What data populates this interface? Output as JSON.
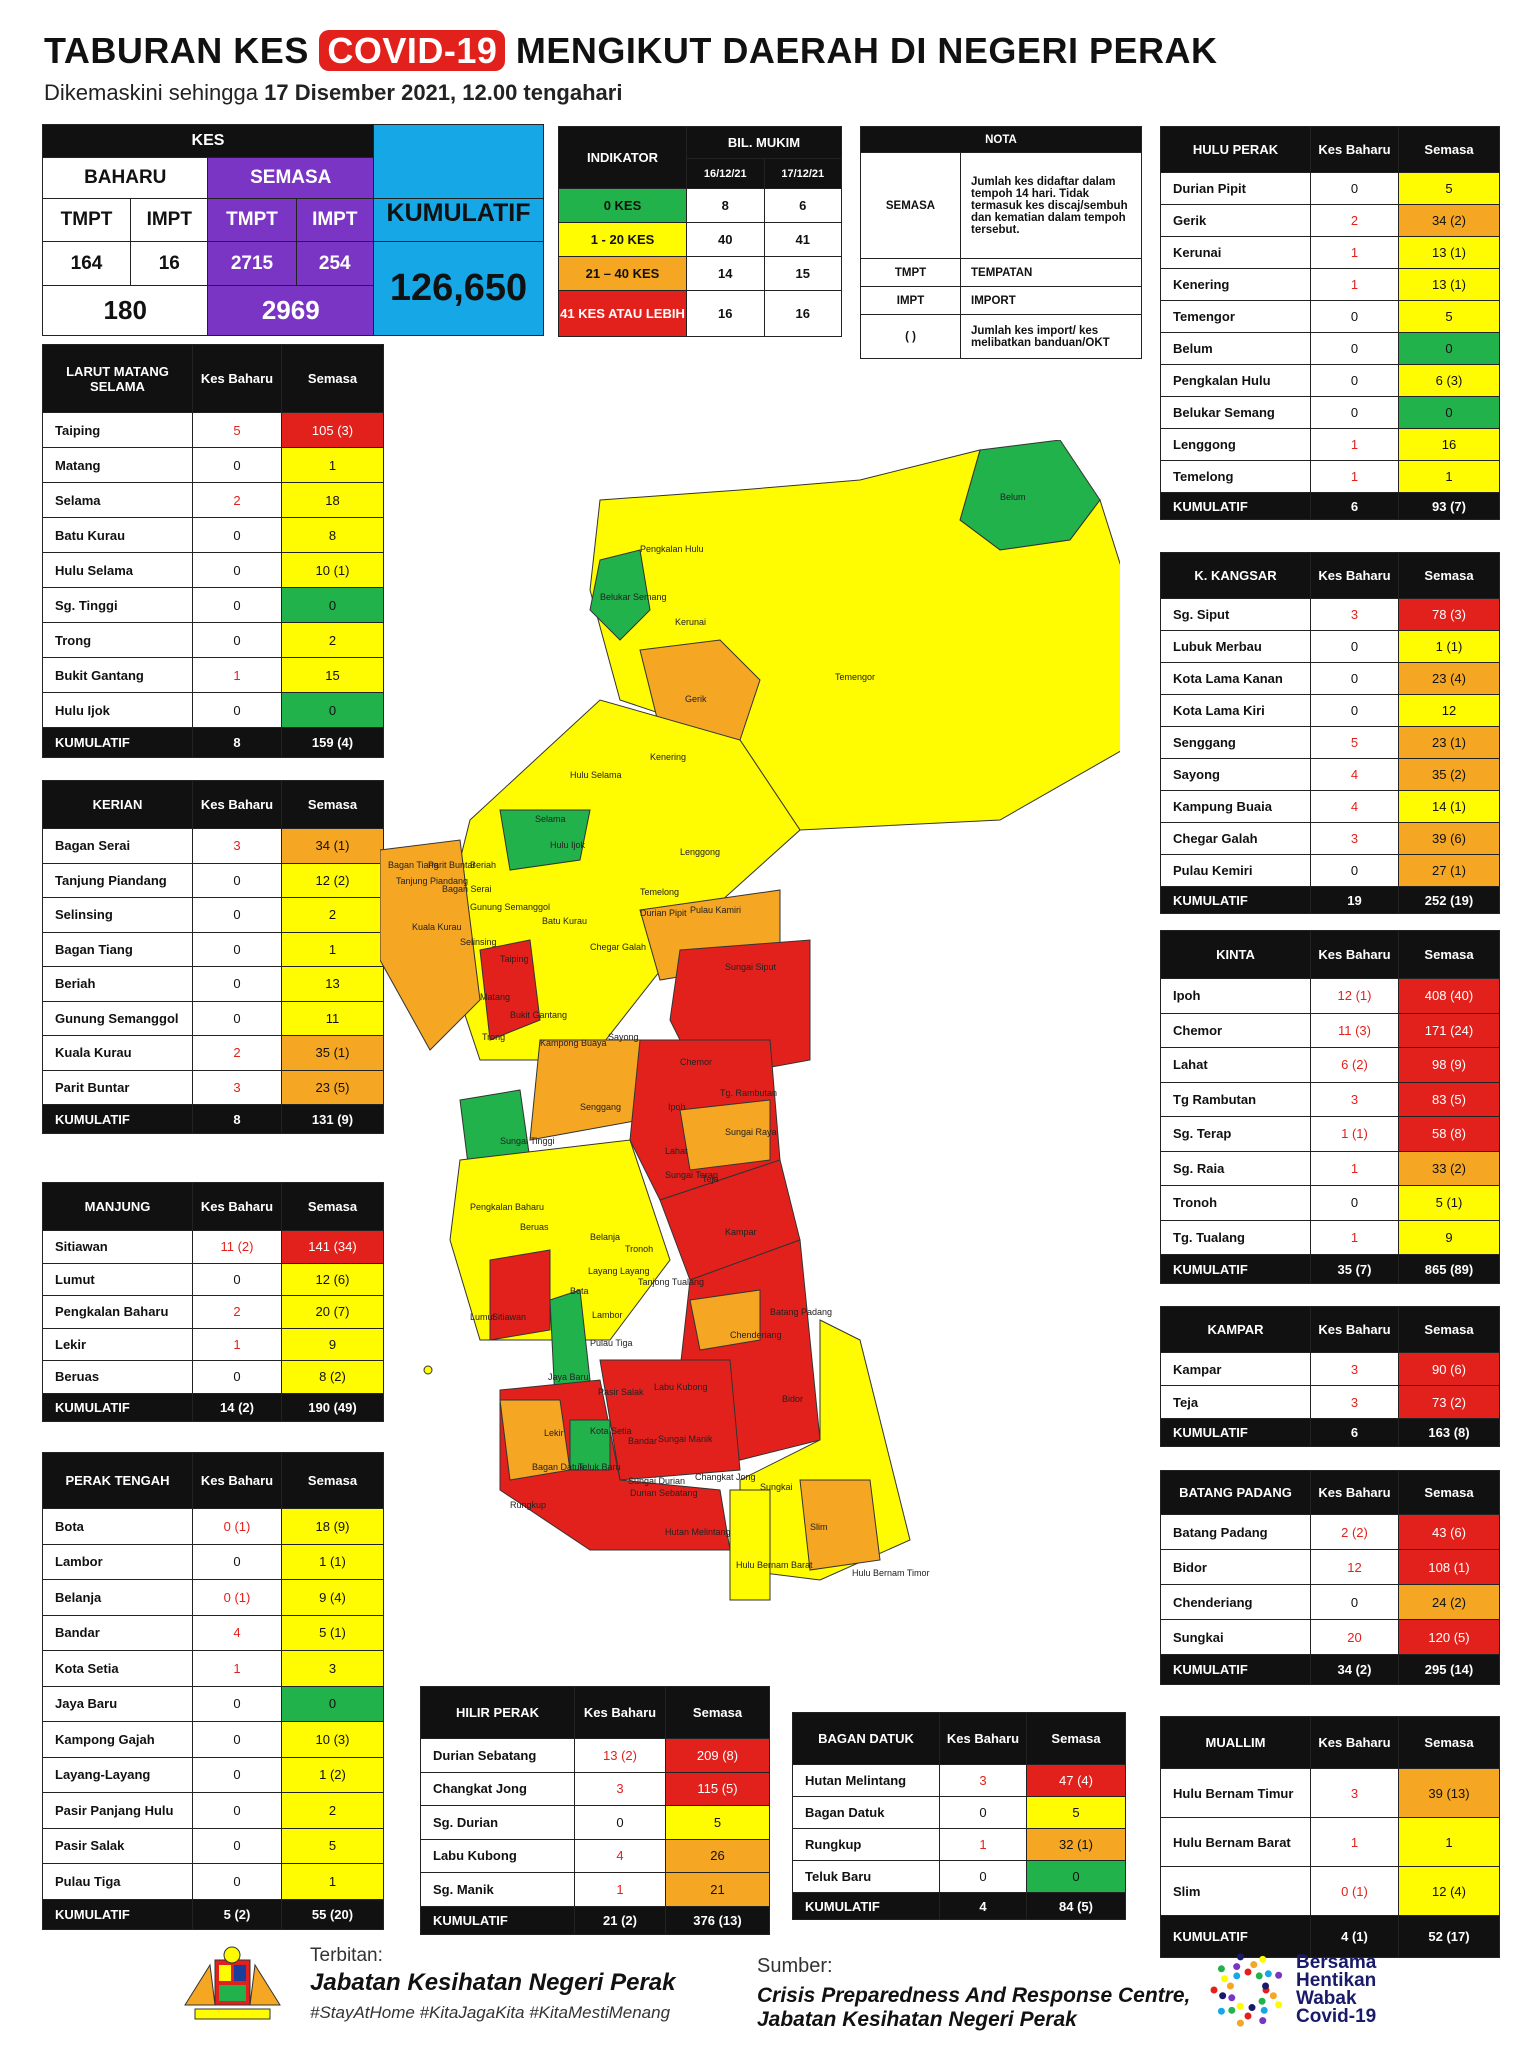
{
  "header": {
    "title_pre": "TABURAN KES",
    "title_highlight": "COVID-19",
    "title_post": "MENGIKUT DAERAH DI NEGERI PERAK",
    "subtitle_pre": "Dikemaskini sehingga",
    "subtitle_bold": "17 Disember 2021, 12.00 tengahari"
  },
  "kes": {
    "title": "KES",
    "baharu": "BAHARU",
    "semasa": "SEMASA",
    "kumulatif_label": "KUMULATIF",
    "tmpt": "TMPT",
    "impt": "IMPT",
    "baharu_tmpt": "164",
    "baharu_impt": "16",
    "semasa_tmpt": "2715",
    "semasa_impt": "254",
    "baharu_total": "180",
    "semasa_total": "2969",
    "kumulatif": "126,650"
  },
  "indikator": {
    "title": "INDIKATOR",
    "bil": "BIL. MUKIM",
    "d1": "16/12/21",
    "d2": "17/12/21",
    "rows": [
      {
        "label": "0 KES",
        "v1": "8",
        "v2": "6"
      },
      {
        "label": "1 - 20 KES",
        "v1": "40",
        "v2": "41"
      },
      {
        "label": "21 – 40 KES",
        "v1": "14",
        "v2": "15"
      },
      {
        "label": "41 KES ATAU LEBIH",
        "v1": "16",
        "v2": "16"
      }
    ]
  },
  "nota": {
    "title": "NOTA",
    "rows": [
      {
        "k": "SEMASA",
        "v": "Jumlah kes didaftar dalam tempoh 14 hari. Tidak termasuk kes discaj/sembuh dan kematian dalam tempoh tersebut."
      },
      {
        "k": "TMPT",
        "v": "TEMPATAN"
      },
      {
        "k": "IMPT",
        "v": "IMPORT"
      },
      {
        "k": "( )",
        "v": "Jumlah kes import/ kes melibatkan banduan/OKT"
      }
    ]
  },
  "col_kes": "Kes Baharu",
  "col_semasa": "Semasa",
  "kumulatif": "KUMULATIF",
  "districts": {
    "larut": {
      "title": "LARUT MATANG SELAMA",
      "rows": [
        {
          "n": "Taiping",
          "b": "5",
          "s": "105 (3)",
          "c": "red",
          "r": true
        },
        {
          "n": "Matang",
          "b": "0",
          "s": "1",
          "c": "yellow"
        },
        {
          "n": "Selama",
          "b": "2",
          "s": "18",
          "c": "yellow",
          "r": true
        },
        {
          "n": "Batu Kurau",
          "b": "0",
          "s": "8",
          "c": "yellow"
        },
        {
          "n": "Hulu Selama",
          "b": "0",
          "s": "10 (1)",
          "c": "yellow"
        },
        {
          "n": "Sg. Tinggi",
          "b": "0",
          "s": "0",
          "c": "green"
        },
        {
          "n": "Trong",
          "b": "0",
          "s": "2",
          "c": "yellow"
        },
        {
          "n": "Bukit Gantang",
          "b": "1",
          "s": "15",
          "c": "yellow",
          "r": true
        },
        {
          "n": "Hulu Ijok",
          "b": "0",
          "s": "0",
          "c": "green"
        }
      ],
      "total_b": "8",
      "total_s": "159 (4)"
    },
    "kerian": {
      "title": "KERIAN",
      "rows": [
        {
          "n": "Bagan Serai",
          "b": "3",
          "s": "34 (1)",
          "c": "orange",
          "r": true
        },
        {
          "n": "Tanjung Piandang",
          "b": "0",
          "s": "12 (2)",
          "c": "yellow"
        },
        {
          "n": "Selinsing",
          "b": "0",
          "s": "2",
          "c": "yellow"
        },
        {
          "n": "Bagan Tiang",
          "b": "0",
          "s": "1",
          "c": "yellow"
        },
        {
          "n": "Beriah",
          "b": "0",
          "s": "13",
          "c": "yellow"
        },
        {
          "n": "Gunung Semanggol",
          "b": "0",
          "s": "11",
          "c": "yellow"
        },
        {
          "n": "Kuala Kurau",
          "b": "2",
          "s": "35 (1)",
          "c": "orange",
          "r": true
        },
        {
          "n": "Parit Buntar",
          "b": "3",
          "s": "23 (5)",
          "c": "orange",
          "r": true
        }
      ],
      "total_b": "8",
      "total_s": "131 (9)"
    },
    "manjung": {
      "title": "MANJUNG",
      "rows": [
        {
          "n": "Sitiawan",
          "b": "11 (2)",
          "s": "141 (34)",
          "c": "red",
          "r": true
        },
        {
          "n": "Lumut",
          "b": "0",
          "s": "12 (6)",
          "c": "yellow"
        },
        {
          "n": "Pengkalan Baharu",
          "b": "2",
          "s": "20 (7)",
          "c": "yellow",
          "r": true
        },
        {
          "n": "Lekir",
          "b": "1",
          "s": "9",
          "c": "yellow",
          "r": true
        },
        {
          "n": "Beruas",
          "b": "0",
          "s": "8 (2)",
          "c": "yellow"
        }
      ],
      "total_b": "14 (2)",
      "total_s": "190 (49)"
    },
    "perak_tengah": {
      "title": "PERAK TENGAH",
      "rows": [
        {
          "n": "Bota",
          "b": "0 (1)",
          "s": "18 (9)",
          "c": "yellow",
          "r": true
        },
        {
          "n": "Lambor",
          "b": "0",
          "s": "1 (1)",
          "c": "yellow"
        },
        {
          "n": "Belanja",
          "b": "0 (1)",
          "s": "9 (4)",
          "c": "yellow",
          "r": true
        },
        {
          "n": "Bandar",
          "b": "4",
          "s": "5 (1)",
          "c": "yellow",
          "r": true
        },
        {
          "n": "Kota Setia",
          "b": "1",
          "s": "3",
          "c": "yellow",
          "r": true
        },
        {
          "n": "Jaya Baru",
          "b": "0",
          "s": "0",
          "c": "green"
        },
        {
          "n": "Kampong Gajah",
          "b": "0",
          "s": "10 (3)",
          "c": "yellow"
        },
        {
          "n": "Layang-Layang",
          "b": "0",
          "s": "1 (2)",
          "c": "yellow"
        },
        {
          "n": "Pasir Panjang Hulu",
          "b": "0",
          "s": "2",
          "c": "yellow"
        },
        {
          "n": "Pasir Salak",
          "b": "0",
          "s": "5",
          "c": "yellow"
        },
        {
          "n": "Pulau Tiga",
          "b": "0",
          "s": "1",
          "c": "yellow"
        }
      ],
      "total_b": "5 (2)",
      "total_s": "55 (20)"
    },
    "hilir_perak": {
      "title": "HILIR PERAK",
      "rows": [
        {
          "n": "Durian Sebatang",
          "b": "13 (2)",
          "s": "209 (8)",
          "c": "red",
          "r": true
        },
        {
          "n": "Changkat Jong",
          "b": "3",
          "s": "115 (5)",
          "c": "red",
          "r": true
        },
        {
          "n": "Sg. Durian",
          "b": "0",
          "s": "5",
          "c": "yellow"
        },
        {
          "n": "Labu Kubong",
          "b": "4",
          "s": "26",
          "c": "orange",
          "r": true
        },
        {
          "n": "Sg. Manik",
          "b": "1",
          "s": "21",
          "c": "orange",
          "r": true
        }
      ],
      "total_b": "21 (2)",
      "total_s": "376 (13)"
    },
    "bagan_datuk": {
      "title": "BAGAN DATUK",
      "rows": [
        {
          "n": "Hutan Melintang",
          "b": "3",
          "s": "47 (4)",
          "c": "red",
          "r": true
        },
        {
          "n": "Bagan Datuk",
          "b": "0",
          "s": "5",
          "c": "yellow"
        },
        {
          "n": "Rungkup",
          "b": "1",
          "s": "32 (1)",
          "c": "orange",
          "r": true
        },
        {
          "n": "Teluk Baru",
          "b": "0",
          "s": "0",
          "c": "green"
        }
      ],
      "total_b": "4",
      "total_s": "84 (5)"
    },
    "hulu_perak": {
      "title": "HULU PERAK",
      "rows": [
        {
          "n": "Durian Pipit",
          "b": "0",
          "s": "5",
          "c": "yellow"
        },
        {
          "n": "Gerik",
          "b": "2",
          "s": "34 (2)",
          "c": "orange",
          "r": true
        },
        {
          "n": "Kerunai",
          "b": "1",
          "s": "13 (1)",
          "c": "yellow",
          "r": true
        },
        {
          "n": "Kenering",
          "b": "1",
          "s": "13 (1)",
          "c": "yellow",
          "r": true
        },
        {
          "n": "Temengor",
          "b": "0",
          "s": "5",
          "c": "yellow"
        },
        {
          "n": "Belum",
          "b": "0",
          "s": "0",
          "c": "green"
        },
        {
          "n": "Pengkalan Hulu",
          "b": "0",
          "s": "6 (3)",
          "c": "yellow"
        },
        {
          "n": "Belukar Semang",
          "b": "0",
          "s": "0",
          "c": "green"
        },
        {
          "n": "Lenggong",
          "b": "1",
          "s": "16",
          "c": "yellow",
          "r": true
        },
        {
          "n": "Temelong",
          "b": "1",
          "s": "1",
          "c": "yellow",
          "r": true
        }
      ],
      "total_b": "6",
      "total_s": "93 (7)"
    },
    "kuala_kangsar": {
      "title": "K. KANGSAR",
      "rows": [
        {
          "n": "Sg. Siput",
          "b": "3",
          "s": "78 (3)",
          "c": "red",
          "r": true
        },
        {
          "n": "Lubuk Merbau",
          "b": "0",
          "s": "1 (1)",
          "c": "yellow"
        },
        {
          "n": "Kota Lama Kanan",
          "b": "0",
          "s": "23 (4)",
          "c": "orange"
        },
        {
          "n": "Kota Lama Kiri",
          "b": "0",
          "s": "12",
          "c": "yellow"
        },
        {
          "n": "Senggang",
          "b": "5",
          "s": "23 (1)",
          "c": "orange",
          "r": true
        },
        {
          "n": "Sayong",
          "b": "4",
          "s": "35 (2)",
          "c": "orange",
          "r": true
        },
        {
          "n": "Kampung Buaia",
          "b": "4",
          "s": "14 (1)",
          "c": "yellow",
          "r": true
        },
        {
          "n": "Chegar Galah",
          "b": "3",
          "s": "39 (6)",
          "c": "orange",
          "r": true
        },
        {
          "n": "Pulau Kemiri",
          "b": "0",
          "s": "27 (1)",
          "c": "orange"
        }
      ],
      "total_b": "19",
      "total_s": "252 (19)"
    },
    "kinta": {
      "title": "KINTA",
      "rows": [
        {
          "n": "Ipoh",
          "b": "12 (1)",
          "s": "408 (40)",
          "c": "red",
          "r": true
        },
        {
          "n": "Chemor",
          "b": "11 (3)",
          "s": "171 (24)",
          "c": "red",
          "r": true
        },
        {
          "n": "Lahat",
          "b": "6 (2)",
          "s": "98 (9)",
          "c": "red",
          "r": true
        },
        {
          "n": "Tg Rambutan",
          "b": "3",
          "s": "83 (5)",
          "c": "red",
          "r": true
        },
        {
          "n": "Sg. Terap",
          "b": "1 (1)",
          "s": "58 (8)",
          "c": "red",
          "r": true
        },
        {
          "n": "Sg. Raia",
          "b": "1",
          "s": "33 (2)",
          "c": "orange",
          "r": true
        },
        {
          "n": "Tronoh",
          "b": "0",
          "s": "5 (1)",
          "c": "yellow"
        },
        {
          "n": "Tg. Tualang",
          "b": "1",
          "s": "9",
          "c": "yellow",
          "r": true
        }
      ],
      "total_b": "35 (7)",
      "total_s": "865 (89)"
    },
    "kampar": {
      "title": "KAMPAR",
      "rows": [
        {
          "n": "Kampar",
          "b": "3",
          "s": "90 (6)",
          "c": "red",
          "r": true
        },
        {
          "n": "Teja",
          "b": "3",
          "s": "73 (2)",
          "c": "red",
          "r": true
        }
      ],
      "total_b": "6",
      "total_s": "163 (8)"
    },
    "batang_padang": {
      "title": "BATANG PADANG",
      "rows": [
        {
          "n": "Batang Padang",
          "b": "2 (2)",
          "s": "43 (6)",
          "c": "red",
          "r": true
        },
        {
          "n": "Bidor",
          "b": "12",
          "s": "108 (1)",
          "c": "red",
          "r": true
        },
        {
          "n": "Chenderiang",
          "b": "0",
          "s": "24 (2)",
          "c": "orange"
        },
        {
          "n": "Sungkai",
          "b": "20",
          "s": "120 (5)",
          "c": "red",
          "r": true
        }
      ],
      "total_b": "34 (2)",
      "total_s": "295 (14)"
    },
    "muallim": {
      "title": "MUALLIM",
      "rows": [
        {
          "n": "Hulu Bernam Timur",
          "b": "3",
          "s": "39 (13)",
          "c": "orange",
          "r": true
        },
        {
          "n": "Hulu Bernam Barat",
          "b": "1",
          "s": "1",
          "c": "yellow",
          "r": true
        },
        {
          "n": "Slim",
          "b": "0 (1)",
          "s": "12 (4)",
          "c": "yellow",
          "r": true
        }
      ],
      "total_b": "4 (1)",
      "total_s": "52 (17)"
    }
  },
  "map_labels": [
    "Belum",
    "Pengkalan Hulu",
    "Belukar Semang",
    "Kerunai",
    "Gerik",
    "Temengor",
    "Kenering",
    "Hulu Selama",
    "Selama",
    "Hulu Ijok",
    "Lenggong",
    "Bagan Tiang",
    "Parit Buntar",
    "Tanjung Piandang",
    "Beriah",
    "Bagan Serai",
    "Kuala Kurau",
    "Gunung Semanggol",
    "Batu Kurau",
    "Temelong",
    "Durian Pipit",
    "Pulau Kamiri",
    "Selinsing",
    "Taiping",
    "Chegar Galah",
    "Sungai Siput",
    "Matang",
    "Bukit Gantang",
    "Kampong Buaya",
    "Sayong",
    "Trong",
    "Chemor",
    "Tg. Rambutan",
    "Senggang",
    "Ipoh",
    "Sungai Tinggi",
    "Sungai Raya",
    "Lahat",
    "Sungai Terap",
    "Teja",
    "Pengkalan Baharu",
    "Beruas",
    "Belanja",
    "Layang Layang",
    "Tronoh",
    "Tanjong Tualang",
    "Kampar",
    "Bota",
    "Lumut",
    "Sitiawan",
    "Lambor",
    "Batang Padang",
    "Chenderiang",
    "Pulau Tiga",
    "Jaya Baru",
    "Pasir Salak",
    "Labu Kubong",
    "Bidor",
    "Lekir",
    "Kota Setia",
    "Bandar",
    "Sungai Manik",
    "Sungai Durian",
    "Changkat Jong",
    "Bagan Datuk",
    "Teluk Baru",
    "Durian Sebatang",
    "Sungkai",
    "Rungkup",
    "Hutan Melintang",
    "Slim",
    "Hulu Bernam Timor",
    "Hulu Bernam Barat"
  ],
  "footer": {
    "terbitan": "Terbitan:",
    "publisher": "Jabatan Kesihatan Negeri Perak",
    "hashtags": "#StayAtHome #KitaJagaKita #KitaMestiMenang",
    "sumber": "Sumber:",
    "source1": "Crisis Preparedness And Response Centre,",
    "source2": "Jabatan Kesihatan Negeri Perak",
    "logo_text": [
      "Bersama",
      "Hentikan",
      "Wabak",
      "Covid-19"
    ]
  },
  "colors": {
    "red": "#e3211c",
    "orange": "#f5a623",
    "yellow": "#fffb00",
    "green": "#21b24b",
    "purple": "#7b35c4",
    "blue": "#16a7e6"
  }
}
